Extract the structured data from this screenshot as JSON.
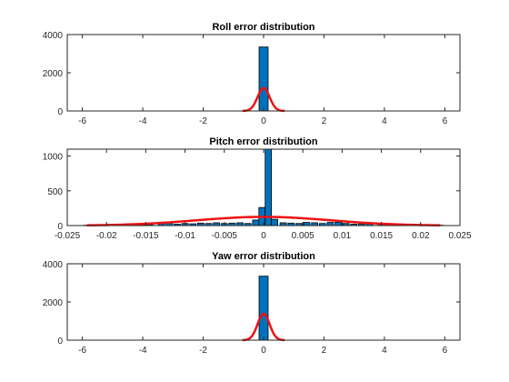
{
  "colors": {
    "bar": "#0072BD",
    "fit": "#EE1111",
    "axis": "#262626"
  },
  "chart_data": [
    {
      "type": "bar",
      "title": "Roll error distribution",
      "xlim": [
        -6.5,
        6.5
      ],
      "ylim": [
        0,
        4000
      ],
      "xticks": [
        -6,
        -4,
        -2,
        0,
        2,
        4,
        6
      ],
      "yticks": [
        0,
        2000,
        4000
      ],
      "grid": false,
      "bins": [
        {
          "x": 0,
          "width": 0.3,
          "value": 3350
        }
      ],
      "fit_curve": {
        "type": "normal",
        "mean": 0,
        "sigma": 0.2,
        "peak": 1200,
        "range": [
          -0.7,
          0.7
        ]
      }
    },
    {
      "type": "bar",
      "title": "Pitch error distribution",
      "xlim": [
        -0.025,
        0.025
      ],
      "ylim": [
        0,
        1100
      ],
      "xticks": [
        -0.025,
        -0.02,
        -0.015,
        -0.01,
        -0.005,
        0,
        0.005,
        0.01,
        0.015,
        0.02,
        0.025
      ],
      "yticks": [
        0,
        500,
        1000
      ],
      "grid": false,
      "bins": [
        {
          "x": -0.0225,
          "width": 0.0008,
          "value": 5
        },
        {
          "x": -0.0195,
          "width": 0.0008,
          "value": 8
        },
        {
          "x": -0.017,
          "width": 0.0008,
          "value": 28
        },
        {
          "x": -0.0155,
          "width": 0.0008,
          "value": 12
        },
        {
          "x": -0.0145,
          "width": 0.0008,
          "value": 15
        },
        {
          "x": -0.013,
          "width": 0.0008,
          "value": 30
        },
        {
          "x": -0.012,
          "width": 0.0008,
          "value": 45
        },
        {
          "x": -0.011,
          "width": 0.0008,
          "value": 20
        },
        {
          "x": -0.01,
          "width": 0.0008,
          "value": 30
        },
        {
          "x": -0.009,
          "width": 0.0008,
          "value": 25
        },
        {
          "x": -0.008,
          "width": 0.0008,
          "value": 35
        },
        {
          "x": -0.007,
          "width": 0.0008,
          "value": 30
        },
        {
          "x": -0.006,
          "width": 0.0008,
          "value": 40
        },
        {
          "x": -0.005,
          "width": 0.0008,
          "value": 30
        },
        {
          "x": -0.004,
          "width": 0.0008,
          "value": 35
        },
        {
          "x": -0.003,
          "width": 0.0008,
          "value": 40
        },
        {
          "x": -0.002,
          "width": 0.0008,
          "value": 30
        },
        {
          "x": -0.001,
          "width": 0.0008,
          "value": 80
        },
        {
          "x": -0.0002,
          "width": 0.0008,
          "value": 260
        },
        {
          "x": 0.0006,
          "width": 0.0008,
          "value": 1150
        },
        {
          "x": 0.0014,
          "width": 0.0008,
          "value": 90
        },
        {
          "x": 0.0025,
          "width": 0.0008,
          "value": 40
        },
        {
          "x": 0.0035,
          "width": 0.0008,
          "value": 35
        },
        {
          "x": 0.0045,
          "width": 0.0008,
          "value": 30
        },
        {
          "x": 0.0055,
          "width": 0.0008,
          "value": 45
        },
        {
          "x": 0.0065,
          "width": 0.0008,
          "value": 40
        },
        {
          "x": 0.0075,
          "width": 0.0008,
          "value": 30
        },
        {
          "x": 0.0085,
          "width": 0.0008,
          "value": 45
        },
        {
          "x": 0.0095,
          "width": 0.0008,
          "value": 50
        },
        {
          "x": 0.0105,
          "width": 0.0008,
          "value": 30
        },
        {
          "x": 0.0115,
          "width": 0.0008,
          "value": 20
        },
        {
          "x": 0.0125,
          "width": 0.0008,
          "value": 25
        },
        {
          "x": 0.0135,
          "width": 0.0008,
          "value": 30
        },
        {
          "x": 0.015,
          "width": 0.0008,
          "value": 35
        },
        {
          "x": 0.017,
          "width": 0.0008,
          "value": 12
        },
        {
          "x": 0.0195,
          "width": 0.0008,
          "value": 10
        },
        {
          "x": 0.0225,
          "width": 0.0008,
          "value": 5
        }
      ],
      "fit_curve": {
        "type": "normal",
        "mean": 0,
        "sigma": 0.0085,
        "peak": 125,
        "range": [
          -0.0225,
          0.0225
        ]
      }
    },
    {
      "type": "bar",
      "title": "Yaw error distribution",
      "xlim": [
        -6.5,
        6.5
      ],
      "ylim": [
        0,
        4000
      ],
      "xticks": [
        -6,
        -4,
        -2,
        0,
        2,
        4,
        6
      ],
      "yticks": [
        0,
        2000,
        4000
      ],
      "grid": false,
      "bins": [
        {
          "x": 0,
          "width": 0.3,
          "value": 3350
        }
      ],
      "fit_curve": {
        "type": "normal",
        "mean": 0,
        "sigma": 0.2,
        "peak": 1380,
        "range": [
          -0.7,
          0.7
        ]
      }
    }
  ]
}
